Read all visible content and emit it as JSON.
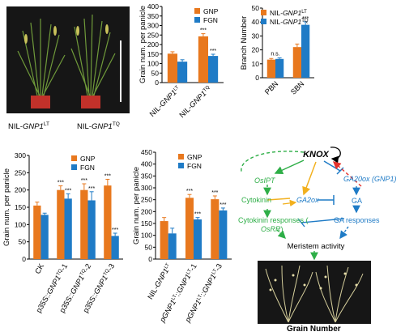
{
  "panel_a": {
    "label_left_prefix": "NIL-",
    "label_left_gene": "GNP1",
    "label_left_sup": "LT",
    "label_right_prefix": "NIL-",
    "label_right_gene": "GNP1",
    "label_right_sup": "TQ"
  },
  "chart_data": [
    {
      "id": "chart-b",
      "type": "bar",
      "ylabel": "Grain num. per panicle",
      "ylim": [
        0,
        400
      ],
      "yticks": [
        0,
        50,
        100,
        150,
        200,
        250,
        300,
        350,
        400
      ],
      "categories": [
        {
          "prefix": "NIL-",
          "gene": "GNP1",
          "sup": "LT"
        },
        {
          "prefix": "NIL-",
          "gene": "GNP1",
          "sup": "TQ"
        }
      ],
      "series": [
        {
          "name": "GNP",
          "color": "#E8781E",
          "values": [
            152,
            243
          ],
          "errors": [
            10,
            14
          ]
        },
        {
          "name": "FGN",
          "color": "#1F7BC6",
          "values": [
            110,
            140
          ],
          "errors": [
            10,
            9
          ]
        }
      ],
      "annotations": [
        {
          "category": 1,
          "series": 0,
          "text": "***"
        },
        {
          "category": 1,
          "series": 1,
          "text": "***"
        }
      ],
      "legend_position": "top-left"
    },
    {
      "id": "chart-c",
      "type": "bar",
      "ylabel": "Branch Number",
      "ylim": [
        0,
        50
      ],
      "yticks": [
        0,
        10,
        20,
        30,
        40,
        50
      ],
      "categories": [
        {
          "text": "PBN"
        },
        {
          "text": "SBN"
        }
      ],
      "series": [
        {
          "name": "NIL-GNP1",
          "name_prefix": "NIL-",
          "name_gene": "GNP1",
          "name_sup": "LT",
          "color": "#E8781E",
          "values": [
            13,
            22
          ],
          "errors": [
            0.8,
            2.2
          ]
        },
        {
          "name": "NIL-GNP1",
          "name_prefix": "NIL-",
          "name_gene": "GNP1",
          "name_sup": "TQ",
          "color": "#1F7BC6",
          "values": [
            13.5,
            38
          ],
          "errors": [
            0.8,
            2.2
          ]
        }
      ],
      "annotations": [
        {
          "category": 0,
          "text": "n.s."
        },
        {
          "category": 1,
          "series": 1,
          "text": "***"
        }
      ],
      "legend_position": "top-left"
    },
    {
      "id": "chart-d",
      "type": "bar",
      "ylabel": "Grain num. per panicle",
      "ylim": [
        0,
        300
      ],
      "yticks": [
        0,
        50,
        100,
        150,
        200,
        250,
        300
      ],
      "categories": [
        {
          "text": "CK"
        },
        {
          "prefix": "p35S::",
          "gene": "GNP1",
          "sup": "TQ",
          "suffix": "-1"
        },
        {
          "prefix": "p35S::",
          "gene": "GNP1",
          "sup": "TQ",
          "suffix": "-2"
        },
        {
          "prefix": "p35S::",
          "gene": "GNP1",
          "sup": "TQ",
          "suffix": "-3"
        }
      ],
      "series": [
        {
          "name": "GNP",
          "color": "#E8781E",
          "values": [
            155,
            200,
            200,
            213
          ],
          "errors": [
            10,
            12,
            18,
            18
          ]
        },
        {
          "name": "FGN",
          "color": "#1F7BC6",
          "values": [
            128,
            175,
            170,
            67
          ],
          "errors": [
            5,
            14,
            25,
            8
          ]
        }
      ],
      "annotations": [
        {
          "category": 1,
          "series": 0,
          "text": "***"
        },
        {
          "category": 1,
          "series": 1,
          "text": "***"
        },
        {
          "category": 2,
          "series": 0,
          "text": "***"
        },
        {
          "category": 2,
          "series": 1,
          "text": "***"
        },
        {
          "category": 3,
          "series": 0,
          "text": "***"
        },
        {
          "category": 3,
          "series": 1,
          "text": "***"
        }
      ],
      "legend_position": "top-right"
    },
    {
      "id": "chart-e",
      "type": "bar",
      "ylabel": "Grain num. per panicle",
      "ylim": [
        0,
        450
      ],
      "yticks": [
        0,
        50,
        100,
        150,
        200,
        250,
        300,
        350,
        400,
        450
      ],
      "categories": [
        {
          "prefix": "NIL-",
          "gene": "GNP1",
          "sup": "LT"
        },
        {
          "prefix": "pGNP1",
          "sup": "LT",
          "mid": "::",
          "gene": "GNP1",
          "sup2": "LT",
          "suffix": "-1"
        },
        {
          "prefix": "pGNP1",
          "sup": "LT",
          "mid": "::",
          "gene": "GNP1",
          "sup2": "LT",
          "suffix": "-3"
        }
      ],
      "series": [
        {
          "name": "GNP",
          "color": "#E8781E",
          "values": [
            160,
            258,
            252
          ],
          "errors": [
            15,
            14,
            14
          ]
        },
        {
          "name": "FGN",
          "color": "#1F7BC6",
          "values": [
            108,
            167,
            205
          ],
          "errors": [
            22,
            8,
            10
          ]
        }
      ],
      "annotations": [
        {
          "category": 1,
          "series": 0,
          "text": "***"
        },
        {
          "category": 1,
          "series": 1,
          "text": "***"
        },
        {
          "category": 2,
          "series": 0,
          "text": "***"
        },
        {
          "category": 2,
          "series": 1,
          "text": "***"
        }
      ],
      "legend_position": "top-left"
    }
  ],
  "diagram": {
    "knox": "KNOX",
    "osipt": "OsIPT",
    "ga20ox": "GA20ox (GNP1)",
    "cytokinin": "Cytokinin",
    "ga2ox": "GA2ox",
    "ga": "GA",
    "cytokinin_responses_prefix": "Cytokinin responses (",
    "cytokinin_responses_gene": "OsRR",
    "cytokinin_responses_suffix": ")",
    "ga_responses": "GA responses",
    "meristem_activity": "Meristem activity",
    "grain_number": "Grain Number",
    "colors": {
      "green": "#2EAE47",
      "blue": "#1F7BC6",
      "orange": "#F2B01E",
      "red": "#E5322D",
      "black": "#000000"
    }
  }
}
